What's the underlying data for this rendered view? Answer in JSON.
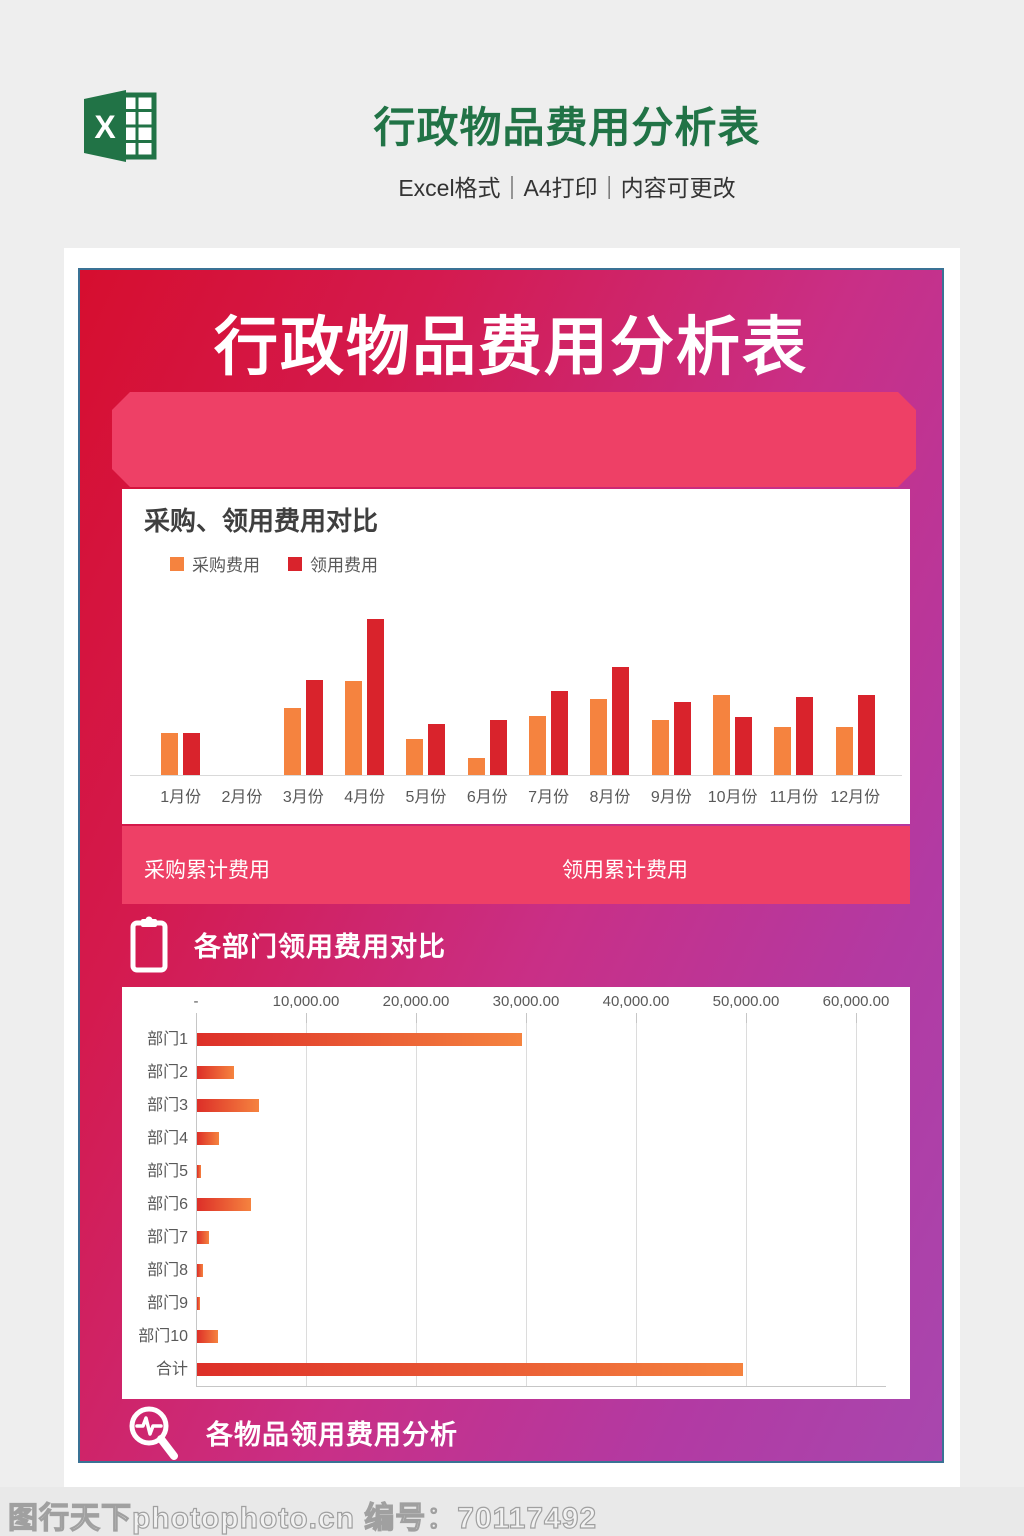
{
  "page": {
    "header": {
      "title": "行政物品费用分析表",
      "subtitle": "Excel格式｜A4打印｜内容可更改"
    },
    "poster": {
      "title": "行政物品费用分析表",
      "cumulative_band": {
        "left": "采购累计费用",
        "right": "领用累计费用"
      },
      "section3_title": "各物品领用费用分析"
    },
    "footer": {
      "watermark": "图行天下photophoto.cn 编号：70117492"
    },
    "icons": {
      "excel": "excel-logo-icon",
      "clipboard": "clipboard-icon",
      "magnifier": "pulse-magnifier-icon"
    },
    "colors": {
      "excel_green": "#217346",
      "ribbon_pink": "#ee4066",
      "series_orange": "#f5833f",
      "series_red": "#d9232c",
      "hbar_gradient_left": "#dd2f28",
      "hbar_gradient_right": "#f5833f",
      "poster_gradient": [
        "#d60e2f",
        "#c92f86",
        "#a847ae"
      ]
    }
  },
  "chart_data": [
    {
      "type": "bar",
      "title": "采购、领用费用对比",
      "categories": [
        "1月份",
        "2月份",
        "3月份",
        "4月份",
        "5月份",
        "6月份",
        "7月份",
        "8月份",
        "9月份",
        "10月份",
        "11月份",
        "12月份"
      ],
      "series": [
        {
          "name": "采购费用",
          "color": "#f5833f",
          "values": [
            27,
            0,
            43,
            60,
            23,
            11,
            38,
            49,
            35,
            51,
            31,
            31
          ]
        },
        {
          "name": "领用费用",
          "color": "#d9232c",
          "values": [
            27,
            0,
            61,
            100,
            33,
            35,
            54,
            69,
            47,
            37,
            50,
            51
          ]
        }
      ],
      "ylim": [
        0,
        100
      ],
      "legend_position": "top-left",
      "grid": false
    },
    {
      "type": "bar",
      "orientation": "horizontal",
      "title": "各部门领用费用对比",
      "categories": [
        "部门1",
        "部门2",
        "部门3",
        "部门4",
        "部门5",
        "部门6",
        "部门7",
        "部门8",
        "部门9",
        "部门10",
        "合计"
      ],
      "values": [
        29500,
        3400,
        5600,
        2000,
        400,
        4900,
        1100,
        500,
        300,
        1900,
        49600
      ],
      "x_ticks": [
        "-",
        "10,000.00",
        "20,000.00",
        "30,000.00",
        "40,000.00",
        "50,000.00",
        "60,000.00"
      ],
      "xlim": [
        0,
        60000
      ],
      "axis_position": "top",
      "grid": true
    }
  ]
}
